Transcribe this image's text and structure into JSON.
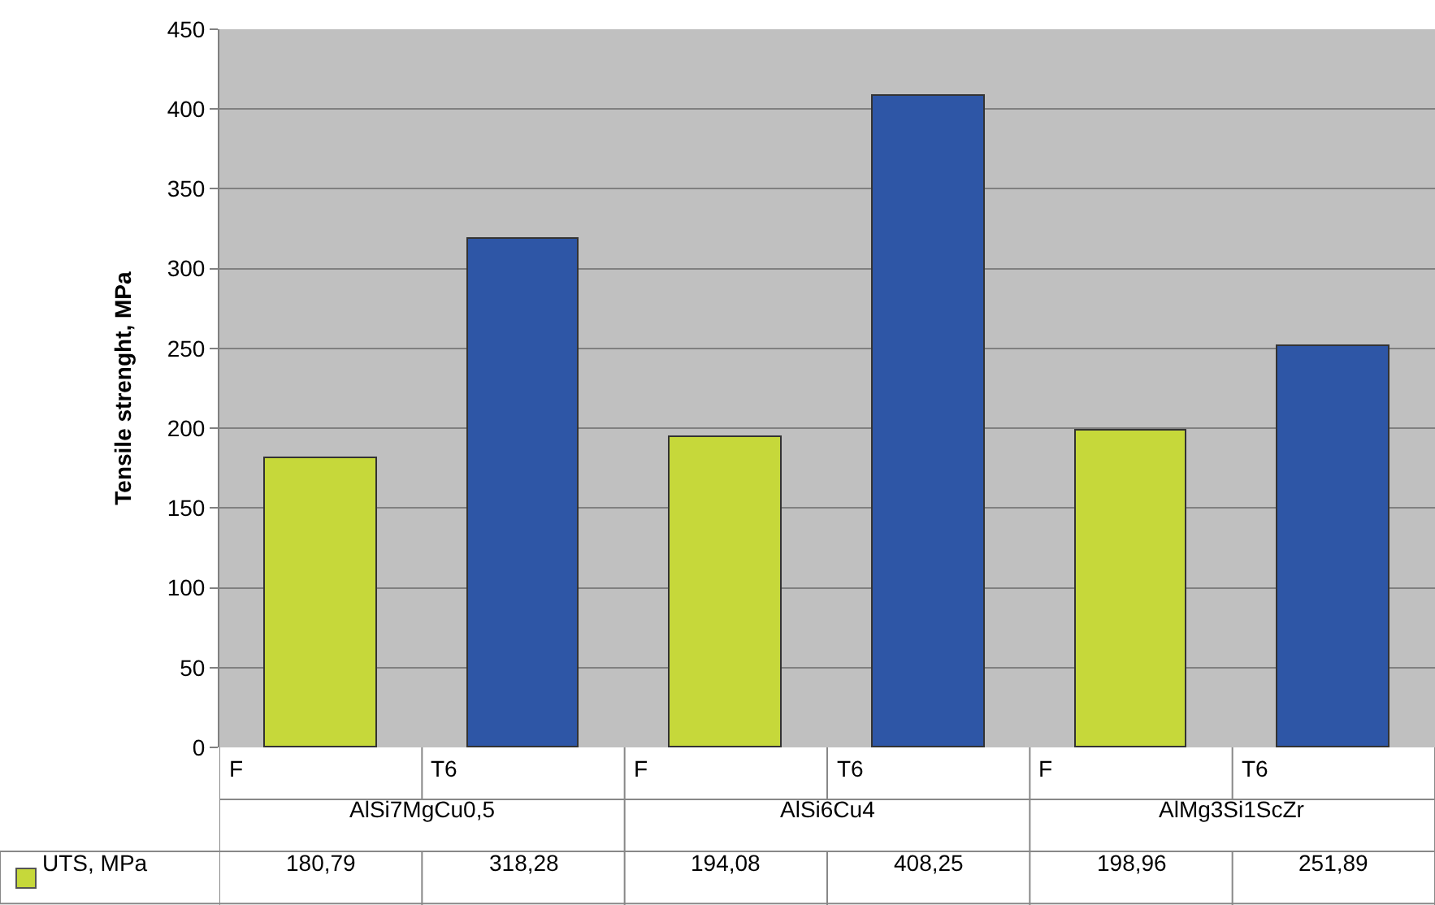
{
  "chart_data": {
    "type": "bar",
    "ylabel": "Tensile strenght, MPa",
    "categories": [
      "F",
      "T6",
      "F",
      "T6",
      "F",
      "T6"
    ],
    "series": [
      {
        "name": "UTS, MPa",
        "colors": [
          "#c6d83a",
          "#2e56a6",
          "#c6d83a",
          "#2e56a6",
          "#c6d83a",
          "#2e56a6"
        ],
        "values": [
          180.79,
          318.28,
          194.08,
          408.25,
          198.96,
          251.89
        ],
        "value_labels": [
          "180,79",
          "318,28",
          "194,08",
          "408,25",
          "198,96",
          "251,89"
        ]
      }
    ],
    "annotations": [
      "AlSi7MgCu0,5",
      "AlSi6Cu4",
      "AlMg3Si1ScZr"
    ],
    "ylim": [
      0,
      450
    ],
    "yticks": [
      0,
      50,
      100,
      150,
      200,
      250,
      300,
      350,
      400,
      450
    ],
    "grid": "y"
  }
}
